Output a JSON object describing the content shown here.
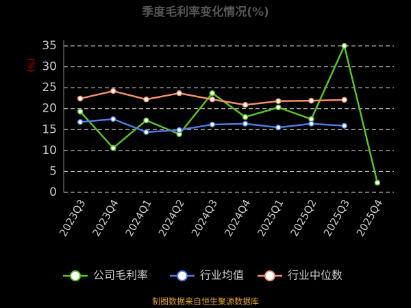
{
  "chart_data": {
    "type": "line",
    "title": "季度毛利率变化情况(%)",
    "y_label": "(%)",
    "footer": "制图数据来自恒生聚源数据库",
    "categories": [
      "2023Q3",
      "2023Q4",
      "2024Q1",
      "2024Q2",
      "2024Q3",
      "2024Q4",
      "2025Q1",
      "2025Q2",
      "2025Q3",
      "2025Q4"
    ],
    "series": [
      {
        "name": "公司毛利率",
        "color": "#5cc421",
        "values": [
          19.3,
          10.6,
          17.2,
          13.9,
          23.7,
          18.0,
          20.3,
          17.5,
          35.0,
          2.3
        ]
      },
      {
        "name": "行业均值",
        "color": "#4a7de8",
        "values": [
          16.8,
          17.5,
          14.4,
          14.9,
          16.2,
          16.4,
          15.5,
          16.4,
          15.9,
          null
        ]
      },
      {
        "name": "行业中位数",
        "color": "#f5926a",
        "values": [
          22.4,
          24.2,
          22.2,
          23.7,
          22.2,
          20.9,
          21.8,
          21.9,
          22.1,
          null
        ]
      }
    ],
    "ylim": [
      0,
      35
    ],
    "yticks": [
      0,
      5,
      10,
      15,
      20,
      25,
      30,
      35
    ],
    "grid": true
  }
}
